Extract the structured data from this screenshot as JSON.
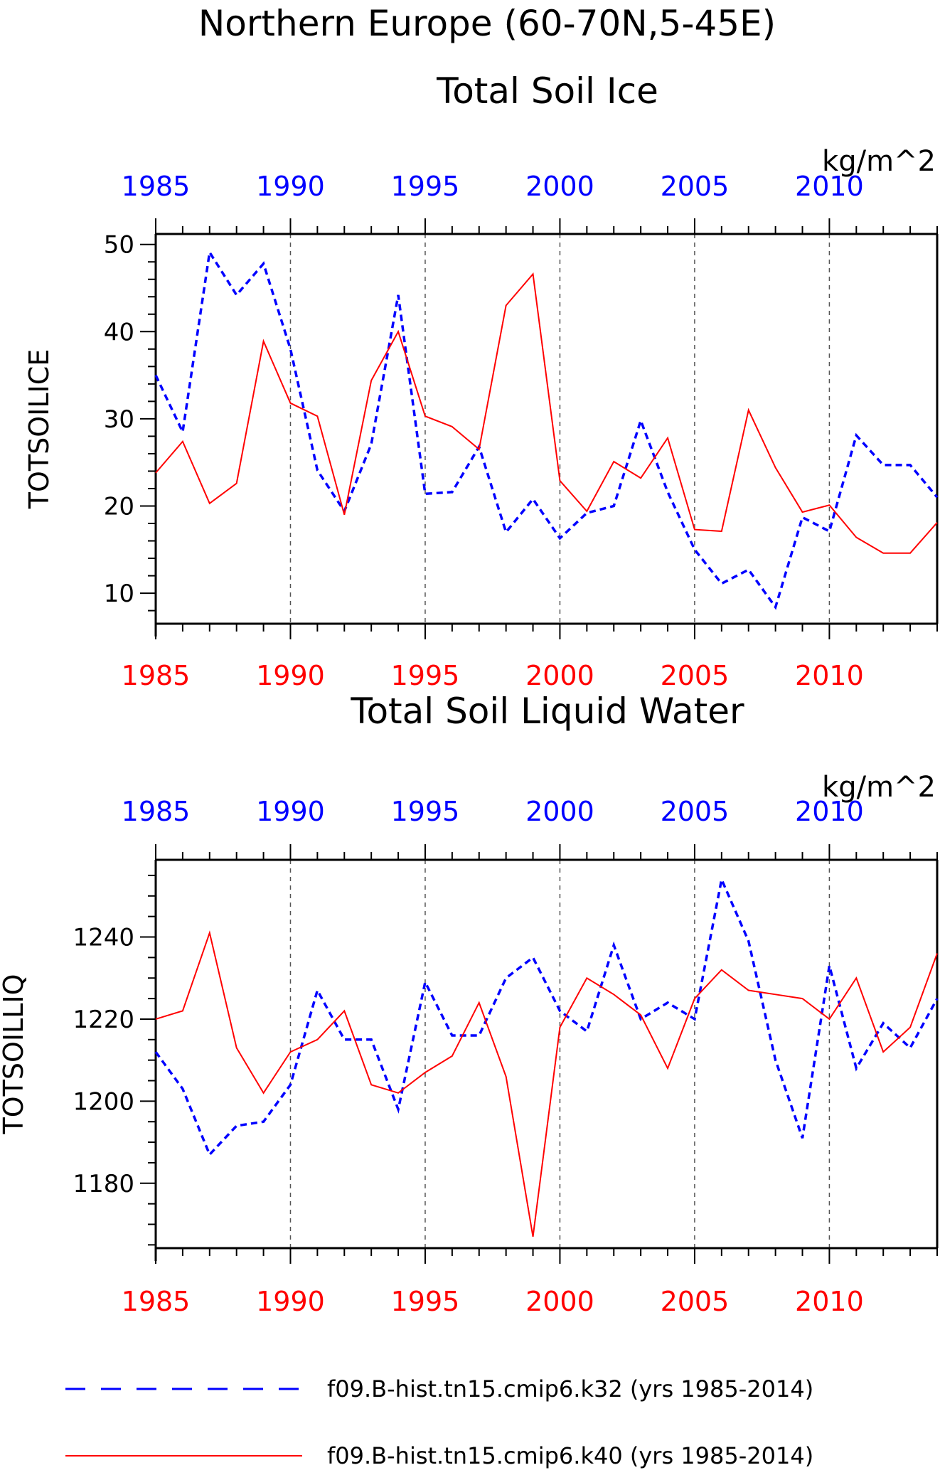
{
  "header": {
    "title_line1": "Northern Europe (60-70N,5-45E)"
  },
  "colors": {
    "k32": "#0000ff",
    "k40": "#ff0000",
    "axis": "#000000",
    "grid": "#555555"
  },
  "legend": {
    "k32_label": "f09.B-hist.tn15.cmip6.k32 (yrs 1985-2014)",
    "k40_label": "f09.B-hist.tn15.cmip6.k40 (yrs 1985-2014)"
  },
  "chart_data": [
    {
      "type": "line",
      "title": "Total Soil Ice",
      "ylabel": "TOTSOILICE",
      "units": "kg/m^2",
      "x": [
        1985,
        1986,
        1987,
        1988,
        1989,
        1990,
        1991,
        1992,
        1993,
        1994,
        1995,
        1996,
        1997,
        1998,
        1999,
        2000,
        2001,
        2002,
        2003,
        2004,
        2005,
        2006,
        2007,
        2008,
        2009,
        2010,
        2011,
        2012,
        2013,
        2014
      ],
      "xlim": [
        1985,
        2014
      ],
      "xticks": [
        1985,
        1990,
        1995,
        2000,
        2005,
        2010
      ],
      "ylim": [
        6.5,
        51.2
      ],
      "yticks": [
        10,
        20,
        30,
        40,
        50
      ],
      "grid": "vertical dashed at major x ticks",
      "series": [
        {
          "name": "f09.B-hist.tn15.cmip6.k32 (yrs 1985-2014)",
          "style": "dashed",
          "color": "#0000ff",
          "values": [
            35.0,
            28.5,
            49.1,
            44.2,
            47.8,
            38.0,
            24.1,
            19.4,
            27.1,
            44.2,
            21.4,
            21.6,
            26.8,
            17.0,
            20.8,
            16.3,
            19.2,
            20.0,
            29.8,
            21.6,
            15.0,
            11.1,
            12.7,
            8.4,
            18.7,
            17.1,
            28.1,
            24.7,
            24.7,
            21.0
          ]
        },
        {
          "name": "f09.B-hist.tn15.cmip6.k40 (yrs 1985-2014)",
          "style": "solid",
          "color": "#ff0000",
          "values": [
            23.8,
            27.4,
            20.3,
            22.6,
            38.9,
            31.8,
            30.3,
            19.0,
            34.4,
            40.0,
            30.3,
            29.1,
            26.5,
            43.0,
            46.6,
            22.9,
            19.4,
            25.1,
            23.2,
            27.8,
            17.3,
            17.1,
            31.0,
            24.4,
            19.3,
            20.1,
            16.4,
            14.6,
            14.6,
            18.1
          ]
        }
      ]
    },
    {
      "type": "line",
      "title": "Total Soil Liquid Water",
      "ylabel": "TOTSOILLIQ",
      "units": "kg/m^2",
      "x": [
        1985,
        1986,
        1987,
        1988,
        1989,
        1990,
        1991,
        1992,
        1993,
        1994,
        1995,
        1996,
        1997,
        1998,
        1999,
        2000,
        2001,
        2002,
        2003,
        2004,
        2005,
        2006,
        2007,
        2008,
        2009,
        2010,
        2011,
        2012,
        2013,
        2014
      ],
      "xlim": [
        1985,
        2014
      ],
      "xticks": [
        1985,
        1990,
        1995,
        2000,
        2005,
        2010
      ],
      "ylim": [
        1164.2,
        1258.8
      ],
      "yticks": [
        1180,
        1200,
        1220,
        1240
      ],
      "grid": "vertical dashed at major x ticks",
      "series": [
        {
          "name": "f09.B-hist.tn15.cmip6.k32 (yrs 1985-2014)",
          "style": "dashed",
          "color": "#0000ff",
          "values": [
            1212,
            1203,
            1187,
            1194,
            1195,
            1204,
            1227,
            1215,
            1215,
            1198,
            1229,
            1216,
            1216,
            1230,
            1235,
            1222,
            1217,
            1238,
            1220,
            1224,
            1220,
            1254,
            1239,
            1210,
            1191,
            1233,
            1208,
            1219,
            1213,
            1225
          ]
        },
        {
          "name": "f09.B-hist.tn15.cmip6.k40 (yrs 1985-2014)",
          "style": "solid",
          "color": "#ff0000",
          "values": [
            1220,
            1222,
            1241,
            1213,
            1202,
            1212,
            1215,
            1222,
            1204,
            1202,
            1207,
            1211,
            1224,
            1206,
            1167,
            1218,
            1230,
            1226,
            1221,
            1208,
            1225,
            1232,
            1227,
            1226,
            1225,
            1220,
            1230,
            1212,
            1218,
            1236
          ]
        }
      ]
    }
  ]
}
